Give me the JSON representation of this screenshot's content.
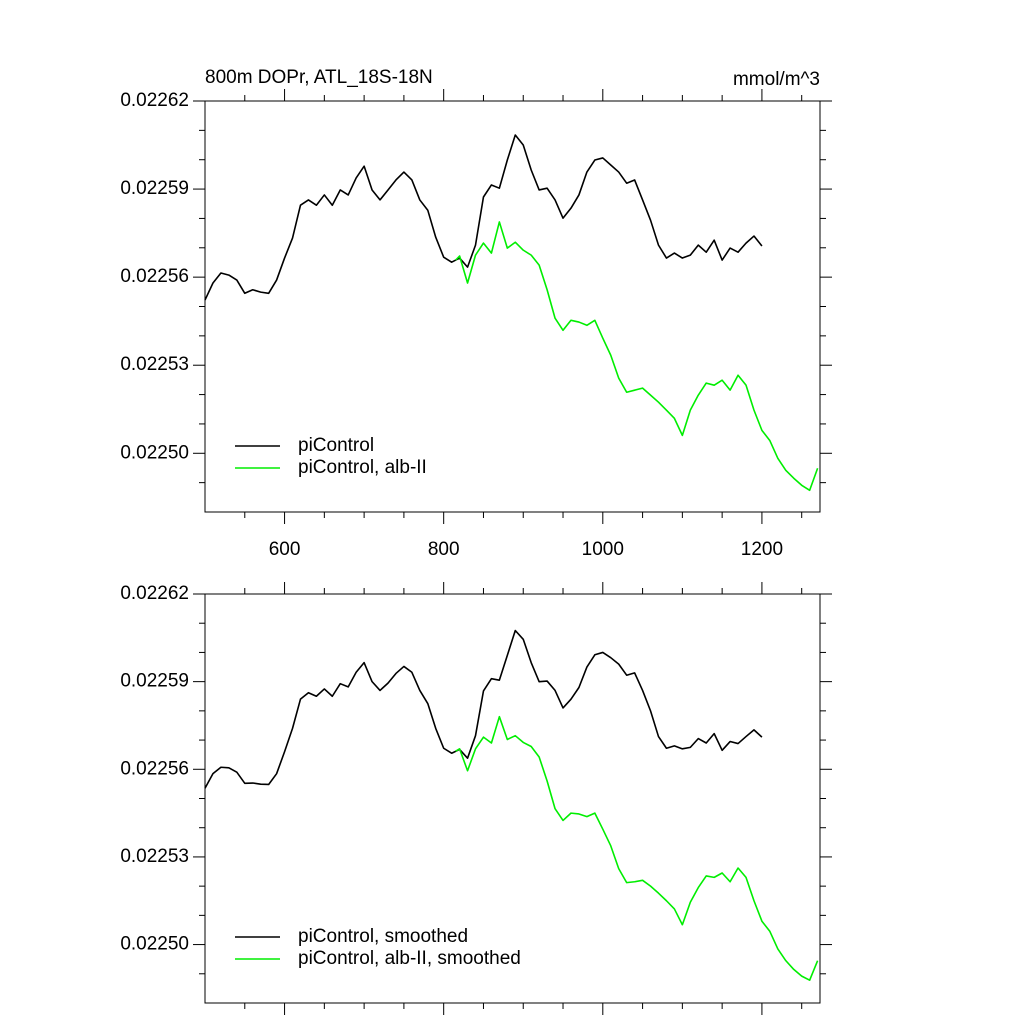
{
  "chart_data": [
    {
      "type": "line",
      "title": "800m DOPr, ATL_18S-18N",
      "units": "mmol/m^3",
      "xlim": [
        500,
        1273
      ],
      "xticks": [
        600,
        800,
        1000,
        1200
      ],
      "xminor": 4,
      "xtick_labels": true,
      "ylim": [
        0.02248,
        0.02262
      ],
      "yticks": [
        {
          "value": 0.0225,
          "label": "0.02250"
        },
        0.02253,
        0.02256,
        0.02259,
        0.02262
      ],
      "yminor": 3,
      "legend": "bottom-left",
      "series": [
        {
          "name": "piControl",
          "color": "#000000",
          "x": [
            500,
            510,
            520,
            530,
            540,
            550,
            560,
            570,
            580,
            590,
            600,
            610,
            620,
            630,
            640,
            650,
            660,
            670,
            680,
            690,
            700,
            710,
            720,
            730,
            740,
            750,
            760,
            770,
            780,
            790,
            800,
            810,
            820,
            830,
            840,
            850,
            860,
            870,
            880,
            890,
            900,
            910,
            920,
            930,
            940,
            950,
            960,
            970,
            980,
            990,
            1000,
            1010,
            1020,
            1030,
            1040,
            1050,
            1060,
            1070,
            1080,
            1090,
            1100,
            1110,
            1120,
            1130,
            1140,
            1150,
            1160,
            1170,
            1180,
            1190,
            1200
          ],
          "values": [
            0.0225522,
            0.022558,
            0.0225614,
            0.0225607,
            0.022559,
            0.0225545,
            0.0225557,
            0.0225549,
            0.0225545,
            0.022559,
            0.0225665,
            0.0225733,
            0.0225845,
            0.0225863,
            0.0225845,
            0.022588,
            0.0225845,
            0.0225897,
            0.022588,
            0.0225938,
            0.0225978,
            0.0225897,
            0.0225863,
            0.0225897,
            0.0225931,
            0.0225958,
            0.0225931,
            0.0225863,
            0.0225828,
            0.0225736,
            0.0225668,
            0.0225651,
            0.0225665,
            0.0225634,
            0.0225709,
            0.0225873,
            0.0225914,
            0.0225903,
            0.0225999,
            0.0226084,
            0.022605,
            0.0225965,
            0.0225897,
            0.0225903,
            0.0225863,
            0.0225801,
            0.0225835,
            0.022588,
            0.0225958,
            0.0225999,
            0.0226006,
            0.0225982,
            0.0225958,
            0.022592,
            0.0225931,
            0.0225863,
            0.0225794,
            0.0225709,
            0.0225665,
            0.0225682,
            0.0225665,
            0.0225675,
            0.0225709,
            0.0225685,
            0.0225726,
            0.0225658,
            0.0225699,
            0.0225685,
            0.0225716,
            0.022574,
            0.0225706
          ]
        },
        {
          "name": "piControl, alb-II",
          "color": "#00ee00",
          "x": [
            815,
            820,
            830,
            840,
            850,
            860,
            870,
            880,
            890,
            900,
            910,
            920,
            930,
            940,
            950,
            960,
            970,
            980,
            990,
            1000,
            1010,
            1020,
            1030,
            1040,
            1050,
            1060,
            1070,
            1080,
            1090,
            1100,
            1110,
            1120,
            1130,
            1140,
            1150,
            1160,
            1170,
            1180,
            1190,
            1200,
            1210,
            1220,
            1230,
            1240,
            1250,
            1260,
            1270
          ],
          "values": [
            0.0225658,
            0.0225672,
            0.022558,
            0.0225675,
            0.0225716,
            0.0225682,
            0.0225788,
            0.0225699,
            0.0225719,
            0.0225692,
            0.0225675,
            0.0225641,
            0.0225557,
            0.022546,
            0.0225419,
            0.0225453,
            0.0225447,
            0.0225436,
            0.0225453,
            0.0225392,
            0.0225334,
            0.0225256,
            0.0225208,
            0.0225215,
            0.0225222,
            0.0225198,
            0.0225174,
            0.0225147,
            0.0225119,
            0.0225061,
            0.0225147,
            0.0225198,
            0.0225239,
            0.0225232,
            0.0225249,
            0.0225215,
            0.0225266,
            0.0225232,
            0.0225147,
            0.0225078,
            0.0225043,
            0.0224983,
            0.0224942,
            0.0224915,
            0.0224891,
            0.0224874,
            0.0224949
          ]
        }
      ]
    },
    {
      "type": "line",
      "xlim": [
        500,
        1273
      ],
      "xticks": [
        600,
        800,
        1000,
        1200
      ],
      "xminor": 4,
      "xtick_labels": false,
      "ylim": [
        0.02248,
        0.02262
      ],
      "yticks": [
        {
          "value": 0.0225,
          "label": "0.02250"
        },
        0.02253,
        0.02256,
        0.02259,
        0.02262
      ],
      "yminor": 3,
      "legend": "bottom-left",
      "series": [
        {
          "name": "piControl, smoothed",
          "color": "#000000",
          "x": [
            500,
            510,
            520,
            530,
            540,
            550,
            560,
            570,
            580,
            590,
            600,
            610,
            620,
            630,
            640,
            650,
            660,
            670,
            680,
            690,
            700,
            710,
            720,
            730,
            740,
            750,
            760,
            770,
            780,
            790,
            800,
            810,
            820,
            830,
            840,
            850,
            860,
            870,
            880,
            890,
            900,
            910,
            920,
            930,
            940,
            950,
            960,
            970,
            980,
            990,
            1000,
            1010,
            1020,
            1030,
            1040,
            1050,
            1060,
            1070,
            1080,
            1090,
            1100,
            1110,
            1120,
            1130,
            1140,
            1150,
            1160,
            1170,
            1180,
            1190,
            1200
          ],
          "values": [
            0.0225535,
            0.0225585,
            0.0225607,
            0.0225605,
            0.022559,
            0.0225552,
            0.0225553,
            0.0225549,
            0.0225548,
            0.0225585,
            0.022566,
            0.022574,
            0.022584,
            0.0225862,
            0.022585,
            0.0225875,
            0.022585,
            0.0225893,
            0.0225882,
            0.0225932,
            0.0225965,
            0.02259,
            0.022587,
            0.0225895,
            0.0225928,
            0.0225952,
            0.0225932,
            0.022587,
            0.0225825,
            0.022574,
            0.0225672,
            0.0225655,
            0.0225668,
            0.0225638,
            0.0225715,
            0.0225868,
            0.022591,
            0.0225905,
            0.022599,
            0.0226075,
            0.0226045,
            0.0225965,
            0.02259,
            0.0225902,
            0.022587,
            0.022581,
            0.022584,
            0.022588,
            0.022595,
            0.0225992,
            0.0226,
            0.0225982,
            0.022596,
            0.0225922,
            0.022593,
            0.022587,
            0.02258,
            0.0225712,
            0.0225672,
            0.022568,
            0.022567,
            0.0225675,
            0.0225705,
            0.022569,
            0.0225722,
            0.0225665,
            0.0225695,
            0.0225688,
            0.0225712,
            0.0225735,
            0.022571
          ]
        },
        {
          "name": "piControl, alb-II, smoothed",
          "color": "#00ee00",
          "x": [
            815,
            820,
            830,
            840,
            850,
            860,
            870,
            880,
            890,
            900,
            910,
            920,
            930,
            940,
            950,
            960,
            970,
            980,
            990,
            1000,
            1010,
            1020,
            1030,
            1040,
            1050,
            1060,
            1070,
            1080,
            1090,
            1100,
            1110,
            1120,
            1130,
            1140,
            1150,
            1160,
            1170,
            1180,
            1190,
            1200,
            1210,
            1220,
            1230,
            1240,
            1250,
            1260,
            1270
          ],
          "values": [
            0.0225662,
            0.022567,
            0.0225595,
            0.022567,
            0.022571,
            0.022569,
            0.022578,
            0.0225702,
            0.0225715,
            0.0225692,
            0.0225678,
            0.0225642,
            0.022556,
            0.0225465,
            0.0225425,
            0.022545,
            0.0225447,
            0.0225438,
            0.022545,
            0.0225395,
            0.0225338,
            0.022526,
            0.0225212,
            0.0225215,
            0.022522,
            0.02252,
            0.0225176,
            0.022515,
            0.0225122,
            0.0225068,
            0.0225145,
            0.0225195,
            0.0225235,
            0.022523,
            0.0225245,
            0.0225215,
            0.0225262,
            0.022523,
            0.022515,
            0.022508,
            0.0225045,
            0.0224985,
            0.0224945,
            0.0224915,
            0.0224892,
            0.0224878,
            0.0224945
          ]
        }
      ]
    }
  ]
}
